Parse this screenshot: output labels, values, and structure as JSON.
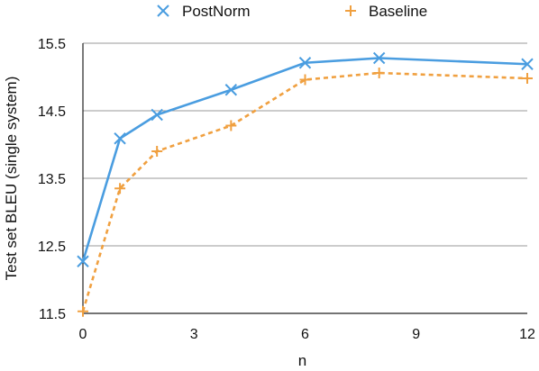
{
  "chart_data": {
    "type": "line",
    "xlabel": "n",
    "ylabel": "Test set BLEU (single system)",
    "xlim": [
      0,
      12
    ],
    "ylim": [
      11.5,
      15.5
    ],
    "xticks": [
      0,
      3,
      6,
      9,
      12
    ],
    "yticks": [
      11.5,
      12.5,
      13.5,
      14.5,
      15.5
    ],
    "xtick_labels": [
      "0",
      "3",
      "6",
      "9",
      "12"
    ],
    "ytick_labels": [
      "11.5",
      "12.5",
      "13.5",
      "14.5",
      "15.5"
    ],
    "grid": "horizontal",
    "legend_position": "top",
    "series": [
      {
        "name": "PostNorm",
        "color": "#4a9de0",
        "marker": "x",
        "line_style": "solid",
        "x": [
          0,
          1,
          2,
          4,
          6,
          8,
          12
        ],
        "values": [
          12.27,
          14.09,
          14.44,
          14.81,
          15.21,
          15.28,
          15.19
        ]
      },
      {
        "name": "Baseline",
        "color": "#f0a040",
        "marker": "plus",
        "line_style": "dashed",
        "x": [
          0,
          1,
          2,
          4,
          6,
          8,
          12
        ],
        "values": [
          11.53,
          13.35,
          13.9,
          14.28,
          14.96,
          15.06,
          14.98
        ]
      }
    ]
  }
}
